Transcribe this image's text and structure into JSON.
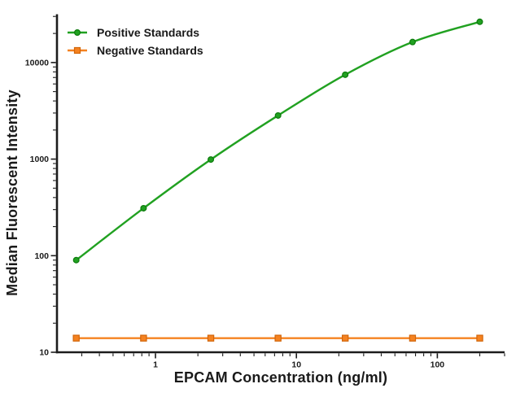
{
  "background": "#ffffff",
  "chart_data": {
    "type": "line",
    "title": "",
    "xlabel": "EPCAM Concentration (ng/ml)",
    "ylabel": "Median Fluorescent Intensity",
    "xscale": "log",
    "yscale": "log",
    "xlim": [
      0.2,
      300
    ],
    "ylim": [
      10,
      31623
    ],
    "grid": false,
    "legend_position": "top-left",
    "x": [
      0.274,
      0.823,
      2.47,
      7.41,
      22.2,
      66.7,
      200
    ],
    "series": [
      {
        "name": "Positive Standards",
        "marker": "circle",
        "color": "#21a121",
        "color_dark": "#0c7a0c",
        "smooth": true,
        "values": [
          90,
          310,
          990,
          2830,
          7480,
          16300,
          26400
        ]
      },
      {
        "name": "Negative Standards",
        "marker": "square",
        "color": "#f58220",
        "color_dark": "#d2650a",
        "smooth": false,
        "values": [
          14,
          14,
          14,
          14,
          14,
          14,
          14
        ]
      }
    ],
    "x_major_ticks": [
      1,
      10,
      100
    ],
    "x_major_tick_labels": [
      "1",
      "10",
      "100"
    ],
    "y_major_ticks": [
      10,
      100,
      1000,
      10000
    ],
    "y_major_tick_labels": [
      "10",
      "100",
      "1000",
      "10000"
    ],
    "axis_color": "#1c1c1c"
  }
}
